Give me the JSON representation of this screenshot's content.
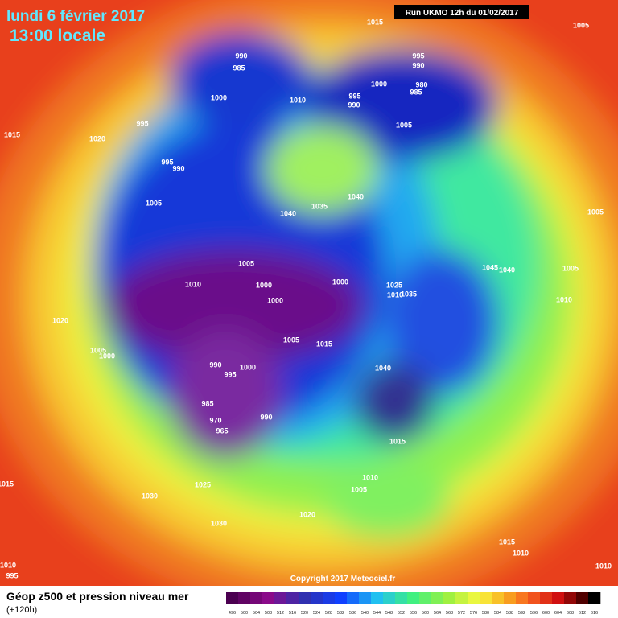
{
  "header": {
    "date": "lundi 6 février 2017",
    "time": "13:00 locale",
    "run": "Run UKMO 12h du 01/02/2017"
  },
  "copyright": "Copyright 2017 Meteociel.fr",
  "footer": {
    "title": "Géop z500 et pression niveau mer",
    "lead": "(+120h)"
  },
  "colorbar": {
    "ticks": [
      496,
      500,
      504,
      508,
      512,
      516,
      520,
      524,
      528,
      532,
      536,
      540,
      544,
      548,
      552,
      556,
      560,
      564,
      568,
      572,
      576,
      580,
      584,
      588,
      592,
      596,
      600,
      604,
      608,
      612,
      616
    ]
  },
  "isobar_labels": [
    "1015",
    "1005",
    "990",
    "985",
    "995",
    "990",
    "980",
    "985",
    "1000",
    "995",
    "990",
    "1000",
    "1010",
    "1005",
    "995",
    "1015",
    "1020",
    "995",
    "990",
    "1005",
    "1040",
    "1035",
    "1040",
    "1005",
    "1005",
    "1045",
    "1040",
    "1005",
    "1010",
    "1000",
    "1000",
    "1025",
    "1035",
    "1010",
    "1000",
    "1010",
    "1020",
    "1005",
    "1015",
    "1005",
    "1000",
    "990",
    "995",
    "1000",
    "1040",
    "985",
    "990",
    "970",
    "965",
    "1015",
    "1015",
    "1025",
    "1010",
    "1030",
    "1005",
    "1020",
    "1030",
    "1015",
    "1010",
    "1010",
    "995",
    "1010"
  ]
}
